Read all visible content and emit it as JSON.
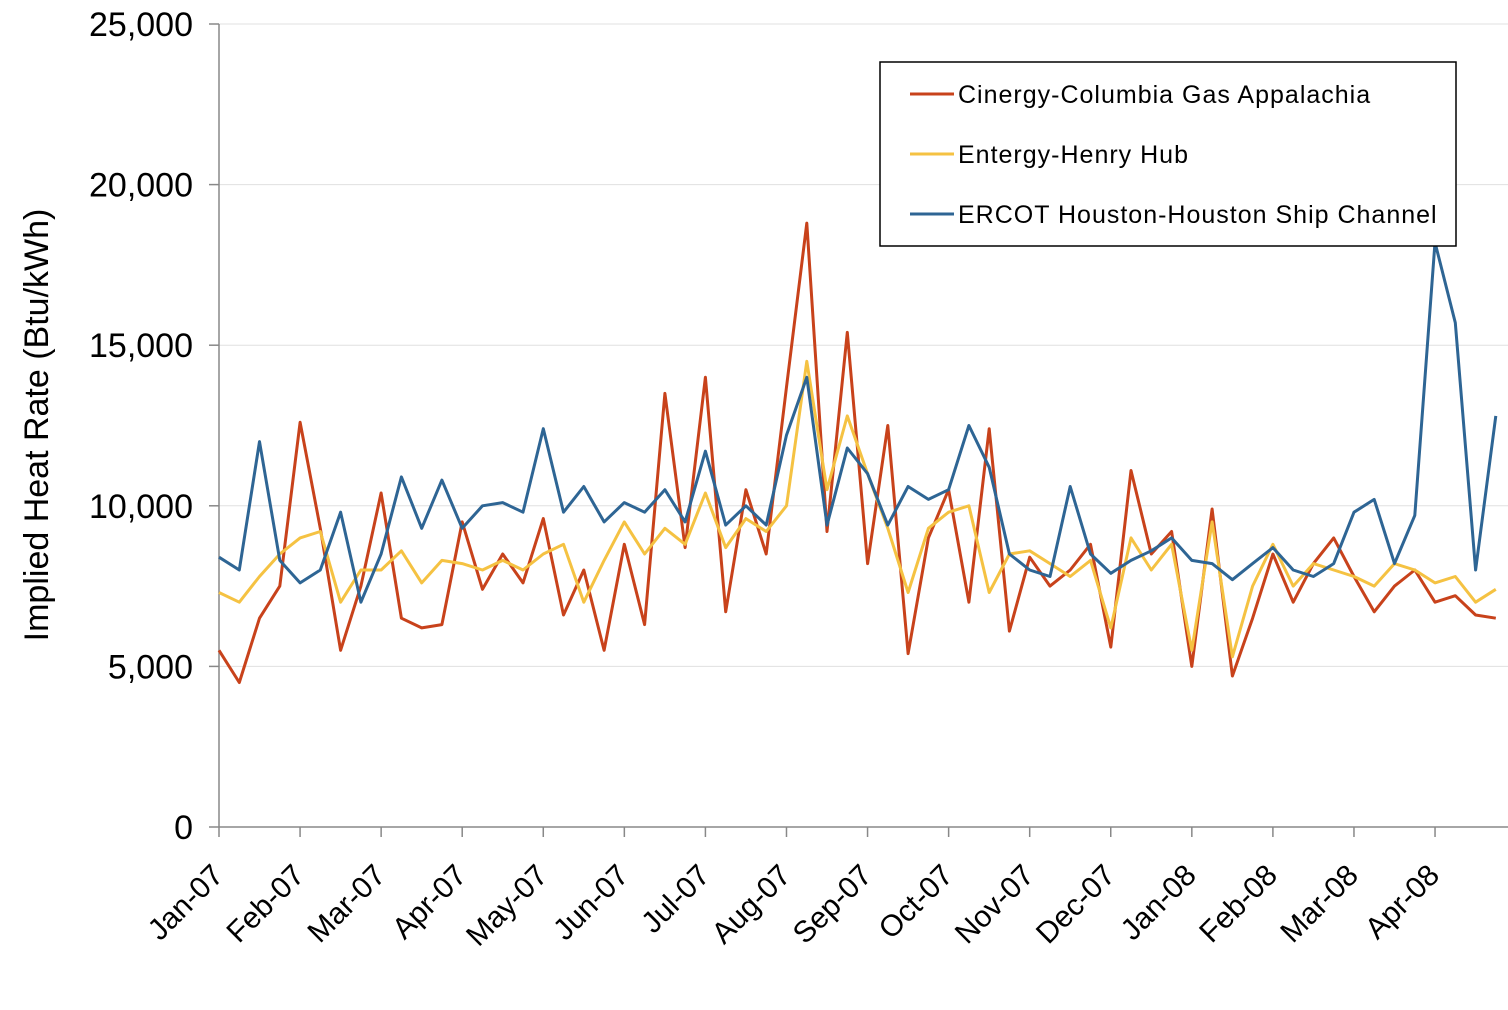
{
  "chart_data": {
    "type": "line",
    "y_label": "Implied Heat Rate (Btu/kWh)",
    "categories": [
      "Jan-07",
      null,
      null,
      null,
      "Feb-07",
      null,
      null,
      null,
      "Mar-07",
      null,
      null,
      null,
      "Apr-07",
      null,
      null,
      null,
      "May-07",
      null,
      null,
      null,
      "Jun-07",
      null,
      null,
      null,
      "Jul-07",
      null,
      null,
      null,
      "Aug-07",
      null,
      null,
      null,
      "Sep-07",
      null,
      null,
      null,
      "Oct-07",
      null,
      null,
      null,
      "Nov-07",
      null,
      null,
      null,
      "Dec-07",
      null,
      null,
      null,
      "Jan-08",
      null,
      null,
      null,
      "Feb-08",
      null,
      null,
      null,
      "Mar-08",
      null,
      null,
      null,
      "Apr-08",
      null,
      null,
      null
    ],
    "series": [
      {
        "name": "Cinergy-Columbia Gas Appalachia",
        "color": "#c8421b",
        "values": [
          5500,
          4500,
          6500,
          7500,
          12600,
          9300,
          5500,
          7500,
          10400,
          6500,
          6200,
          6300,
          9500,
          7400,
          8500,
          7600,
          9600,
          6600,
          8000,
          5500,
          8800,
          6300,
          13500,
          8700,
          14000,
          6700,
          10500,
          8500,
          13700,
          18800,
          9200,
          15400,
          8200,
          12500,
          5400,
          9000,
          10500,
          7000,
          12400,
          6100,
          8400,
          7500,
          8000,
          8800,
          5600,
          11100,
          8500,
          9200,
          5000,
          9900,
          4700,
          6500,
          8500,
          7000,
          8200,
          9000,
          7800,
          6700,
          7500,
          8000,
          7000,
          7200,
          6600,
          6500
        ]
      },
      {
        "name": "Entergy-Henry Hub",
        "color": "#f5c242",
        "values": [
          7300,
          7000,
          7800,
          8500,
          9000,
          9200,
          7000,
          8000,
          8000,
          8600,
          7600,
          8300,
          8200,
          8000,
          8300,
          8000,
          8500,
          8800,
          7000,
          8300,
          9500,
          8500,
          9300,
          8800,
          10400,
          8700,
          9600,
          9200,
          10000,
          14500,
          10500,
          12800,
          11000,
          9300,
          7300,
          9300,
          9800,
          10000,
          7300,
          8500,
          8600,
          8200,
          7800,
          8300,
          6200,
          9000,
          8000,
          8800,
          5500,
          9500,
          5300,
          7500,
          8800,
          7500,
          8200,
          8000,
          7800,
          7500,
          8200,
          8000,
          7600,
          7800,
          7000,
          7400
        ]
      },
      {
        "name": "ERCOT Houston-Houston Ship Channel",
        "color": "#2e6594",
        "values": [
          8400,
          8000,
          12000,
          8300,
          7600,
          8000,
          9800,
          7000,
          8500,
          10900,
          9300,
          10800,
          9300,
          10000,
          10100,
          9800,
          12400,
          9800,
          10600,
          9500,
          10100,
          9800,
          10500,
          9500,
          11700,
          9400,
          10000,
          9400,
          12200,
          14000,
          9400,
          11800,
          11000,
          9400,
          10600,
          10200,
          10500,
          12500,
          11200,
          8500,
          8000,
          7800,
          10600,
          8500,
          7900,
          8300,
          8600,
          9000,
          8300,
          8200,
          7700,
          8200,
          8700,
          8000,
          7800,
          8200,
          9800,
          10200,
          8200,
          9700,
          18200,
          15700,
          8000,
          12800
        ]
      }
    ],
    "ylim": [
      0,
      25000
    ],
    "yticks": [
      0,
      {
        "value": 5000,
        "label": "5,000"
      },
      {
        "value": 10000,
        "label": "10,000"
      },
      {
        "value": 15000,
        "label": "15,000"
      },
      {
        "value": 20000,
        "label": "20,000"
      },
      {
        "value": 25000,
        "label": "25,000"
      }
    ],
    "grid": true,
    "legend": "upper right"
  }
}
